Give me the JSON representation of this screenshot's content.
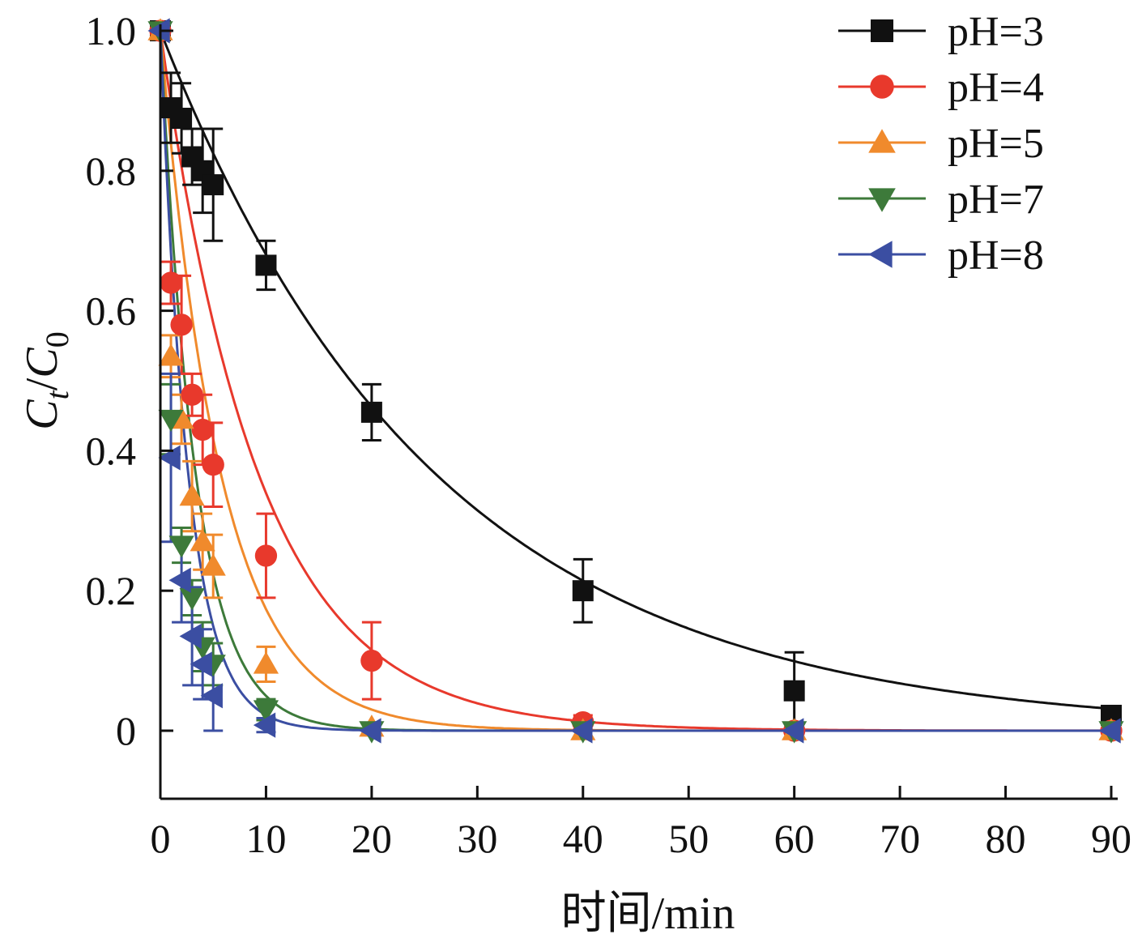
{
  "chart_data": {
    "type": "line",
    "title": "",
    "xlabel": "时间/min",
    "ylabel": {
      "base": "C",
      "sub_num": "t",
      "sep": "/",
      "base2": "C",
      "sub_den": "0"
    },
    "xlim": [
      0,
      90
    ],
    "ylim": [
      -0.1,
      1.0
    ],
    "x_ticks": [
      0,
      10,
      20,
      30,
      40,
      50,
      60,
      70,
      80,
      90
    ],
    "y_ticks": [
      0,
      0.2,
      0.4,
      0.6,
      0.8,
      1.0
    ],
    "y_tick_labels": [
      "0",
      "0.2",
      "0.4",
      "0.6",
      "0.8",
      "1.0"
    ],
    "x_tick_labels": [
      "0",
      "10",
      "20",
      "30",
      "40",
      "50",
      "60",
      "70",
      "80",
      "90"
    ],
    "grid": false,
    "legend_position": "top-right",
    "series": [
      {
        "name": "pH=3",
        "color": "#111111",
        "marker": "square",
        "x": [
          0,
          1,
          2,
          3,
          4,
          5,
          10,
          20,
          40,
          60,
          90
        ],
        "y": [
          1.0,
          0.89,
          0.875,
          0.82,
          0.8,
          0.78,
          0.665,
          0.455,
          0.2,
          0.057,
          0.022
        ],
        "err": [
          0.01,
          0.05,
          0.05,
          0.04,
          0.06,
          0.08,
          0.035,
          0.04,
          0.045,
          0.055,
          0.01
        ],
        "fit": {
          "k": 0.0385,
          "x_end": 90
        }
      },
      {
        "name": "pH=4",
        "color": "#e8392c",
        "marker": "circle",
        "x": [
          0,
          1,
          2,
          3,
          4,
          5,
          10,
          20,
          40,
          60,
          90
        ],
        "y": [
          1.0,
          0.64,
          0.58,
          0.48,
          0.43,
          0.38,
          0.25,
          0.1,
          0.012,
          0.0,
          0.0
        ],
        "err": [
          0.01,
          0.03,
          0.07,
          0.03,
          0.05,
          0.06,
          0.06,
          0.055,
          0.01,
          0.005,
          0.005
        ],
        "fit": {
          "k": 0.108,
          "x_end": 90
        }
      },
      {
        "name": "pH=5",
        "color": "#f08a2c",
        "marker": "triangle-up",
        "x": [
          0,
          1,
          2,
          3,
          4,
          5,
          10,
          20,
          40,
          60,
          90
        ],
        "y": [
          1.0,
          0.535,
          0.445,
          0.335,
          0.27,
          0.235,
          0.095,
          0.005,
          0.0,
          0.0,
          0.0
        ],
        "err": [
          0.01,
          0.03,
          0.035,
          0.05,
          0.04,
          0.045,
          0.025,
          0.005,
          0.005,
          0.005,
          0.005
        ],
        "fit": {
          "k": 0.175,
          "x_end": 90
        }
      },
      {
        "name": "pH=7",
        "color": "#3d7a3a",
        "marker": "triangle-down",
        "x": [
          0,
          1,
          2,
          3,
          4,
          5,
          10,
          20,
          40,
          60,
          90
        ],
        "y": [
          1.0,
          0.445,
          0.265,
          0.19,
          0.12,
          0.095,
          0.03,
          0.0,
          0.0,
          0.0,
          0.0
        ],
        "err": [
          0.01,
          0.05,
          0.025,
          0.025,
          0.035,
          0.03,
          0.015,
          0.005,
          0.005,
          0.005,
          0.005
        ],
        "fit": {
          "k": 0.3,
          "x_end": 90
        }
      },
      {
        "name": "pH=8",
        "color": "#3b4ea2",
        "marker": "triangle-left",
        "x": [
          0,
          1,
          2,
          3,
          4,
          5,
          10,
          20,
          40,
          60,
          90
        ],
        "y": [
          1.0,
          0.39,
          0.215,
          0.135,
          0.095,
          0.05,
          0.008,
          0.0,
          0.0,
          0.0,
          0.0
        ],
        "err": [
          0.01,
          0.12,
          0.06,
          0.07,
          0.05,
          0.05,
          0.01,
          0.005,
          0.005,
          0.005,
          0.005
        ],
        "fit": {
          "k": 0.38,
          "x_end": 90
        }
      }
    ]
  }
}
